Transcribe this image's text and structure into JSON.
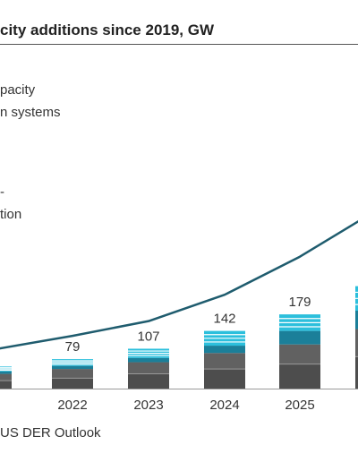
{
  "title": "city additions since 2019, GW",
  "legend": {
    "line1": "pacity",
    "line2": "n systems",
    "line3": "tion"
  },
  "source": "US DER Outlook",
  "colors": {
    "bottom_segment": "#4d4d4d",
    "middle_segment": "#616161",
    "teal_segment": "#1b7f99",
    "cyan_segment": "#2cbfdc",
    "line": "#1f5c6e",
    "axis": "#999999",
    "label": "#333333"
  },
  "chart_data": {
    "type": "bar",
    "categories": [
      "2021",
      "2022",
      "2023",
      "2024",
      "2025",
      "2026"
    ],
    "tick_labels": [
      "21",
      "2022",
      "2023",
      "2024",
      "2025",
      ""
    ],
    "totals": [
      63,
      79,
      107,
      142,
      179,
      242
    ],
    "total_labels": [
      "3",
      "79",
      "107",
      "142",
      "179",
      ""
    ],
    "segments": [
      [
        13,
        11,
        4,
        8
      ],
      [
        17,
        15,
        5,
        11
      ],
      [
        24,
        19,
        7,
        15
      ],
      [
        32,
        26,
        12,
        24
      ],
      [
        40,
        32,
        22,
        27
      ],
      [
        52,
        45,
        30,
        40
      ]
    ],
    "line": {
      "values": [
        63,
        86,
        110,
        153,
        215,
        290
      ]
    },
    "ylim": [
      0,
      300
    ]
  }
}
